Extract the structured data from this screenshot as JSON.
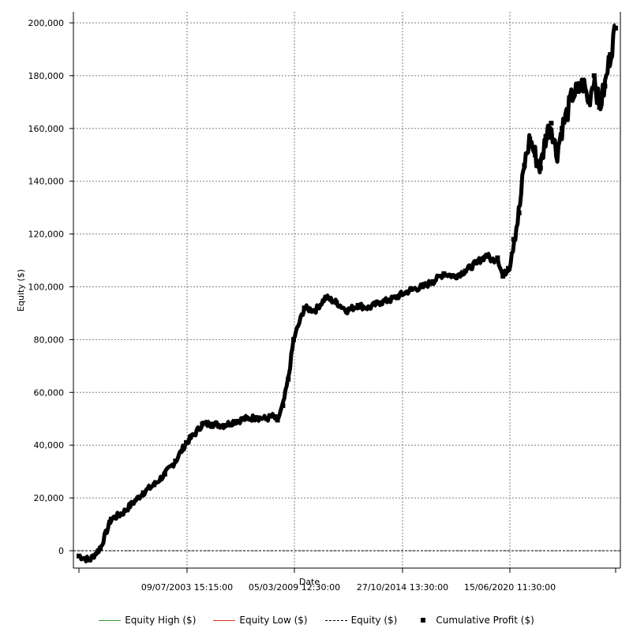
{
  "chart_data": {
    "type": "line",
    "xlabel": "Date",
    "ylabel": "Equity ($)",
    "x_tick_labels": [
      "09/07/2003 15:15:00",
      "05/03/2009 12:30:00",
      "27/10/2014 13:30:00",
      "15/06/2020 11:30:00"
    ],
    "y_tick_labels": [
      "0",
      "20,000",
      "40,000",
      "60,000",
      "80,000",
      "100,000",
      "120,000",
      "140,000",
      "160,000",
      "180,000",
      "200,000"
    ],
    "y_ticks": [
      0,
      20000,
      40000,
      60000,
      80000,
      100000,
      120000,
      140000,
      160000,
      180000,
      200000
    ],
    "ylim": [
      -6500,
      205000
    ],
    "grid": true,
    "legend_position": "bottom",
    "series": [
      {
        "name": "Equity High ($)",
        "color": "#3a9a3a",
        "style": "solid"
      },
      {
        "name": "Equity Low ($)",
        "color": "#e03030",
        "style": "solid"
      },
      {
        "name": "Equity ($)",
        "color": "#000000",
        "style": "dashed"
      },
      {
        "name": "Cumulative Profit ($)",
        "color": "#000000",
        "style": "markers",
        "x": [
          0,
          0.02,
          0.04,
          0.06,
          0.08,
          0.1,
          0.12,
          0.14,
          0.16,
          0.18,
          0.2,
          0.215,
          0.23,
          0.25,
          0.27,
          0.29,
          0.31,
          0.33,
          0.35,
          0.36,
          0.37,
          0.38,
          0.39,
          0.4,
          0.42,
          0.44,
          0.46,
          0.48,
          0.5,
          0.52,
          0.54,
          0.56,
          0.58,
          0.6,
          0.62,
          0.64,
          0.66,
          0.68,
          0.7,
          0.72,
          0.74,
          0.76,
          0.77,
          0.78,
          0.79,
          0.8,
          0.81,
          0.82,
          0.83,
          0.84,
          0.85,
          0.86,
          0.87,
          0.88,
          0.89,
          0.9,
          0.91,
          0.92,
          0.93,
          0.94,
          0.95,
          0.96,
          0.97,
          0.98,
          0.99,
          1.0
        ],
        "y": [
          -2000,
          -3500,
          1000,
          12000,
          14000,
          18000,
          22000,
          25000,
          29000,
          34000,
          41000,
          44000,
          48000,
          48000,
          47500,
          49000,
          50000,
          50500,
          50000,
          51000,
          49500,
          55000,
          65000,
          80000,
          92000,
          91000,
          96000,
          94000,
          91000,
          93000,
          92000,
          94000,
          95000,
          97000,
          99000,
          100000,
          102000,
          105000,
          104000,
          106000,
          109000,
          112000,
          110000,
          111000,
          104000,
          107000,
          118000,
          128000,
          146000,
          156000,
          150000,
          145000,
          157000,
          162000,
          150000,
          160000,
          166000,
          173000,
          174000,
          177000,
          170000,
          180000,
          168000,
          176000,
          188000,
          198000
        ]
      }
    ]
  }
}
